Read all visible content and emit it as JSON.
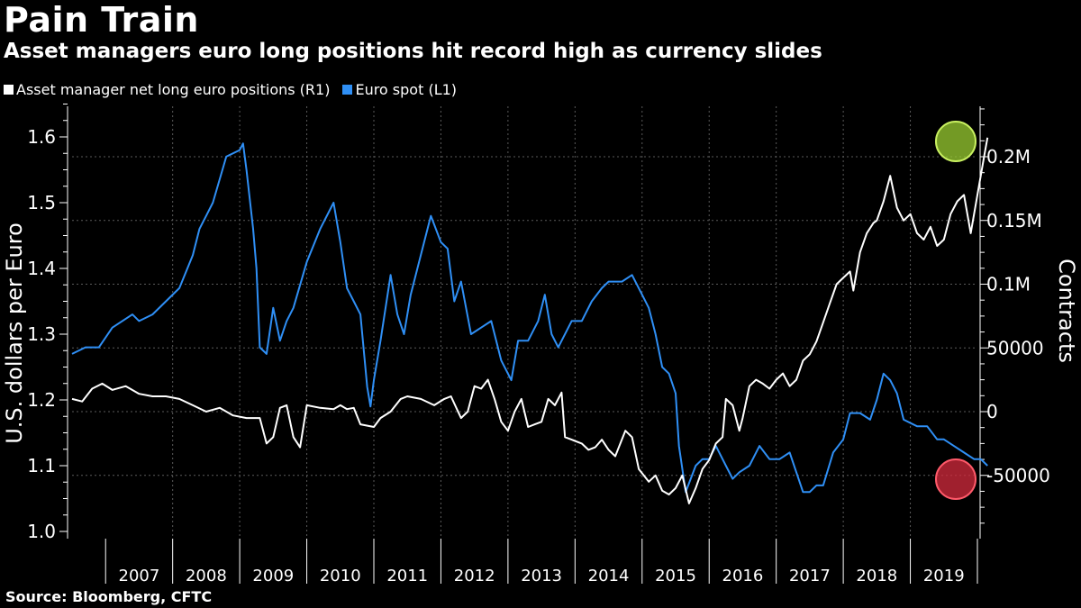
{
  "header": {
    "title": "Pain Train",
    "subtitle": "Asset managers euro long positions hit record high as currency slides"
  },
  "legend": [
    {
      "label": "Asset manager net long euro positions (R1)",
      "color": "#ffffff"
    },
    {
      "label": "Euro spot (L1)",
      "color": "#2f8ff5"
    }
  ],
  "footer": {
    "source": "Source: Bloomberg, CFTC"
  },
  "colors": {
    "background": "#000000",
    "euro": "#2f8ff5",
    "positions": "#ffffff",
    "grid": "#5a5a5a",
    "highlight_high": "#9acd32",
    "highlight_low": "#d62b3e"
  },
  "chart_data": {
    "type": "line",
    "title": "Pain Train",
    "subtitle": "Asset managers euro long positions hit record high as currency slides",
    "x_labels": [
      "2007",
      "2008",
      "2009",
      "2010",
      "2011",
      "2012",
      "2013",
      "2014",
      "2015",
      "2016",
      "2017",
      "2018",
      "2019"
    ],
    "xlim": [
      2006.0,
      2019.5
    ],
    "left_axis": {
      "label": "U.S. dollars per Euro",
      "ticks": [
        "1.0",
        "1.1",
        "1.2",
        "1.3",
        "1.4",
        "1.5",
        "1.6"
      ],
      "ylim": [
        1.0,
        1.65
      ]
    },
    "right_axis": {
      "label": "Contracts",
      "ticks": [
        "-50000",
        "0",
        "50000",
        "0.1M",
        "0.15M",
        "0.2M"
      ],
      "tick_values": [
        -50000,
        0,
        50000,
        100000,
        150000,
        200000
      ],
      "ylim": [
        -100000,
        240000
      ]
    },
    "series": [
      {
        "name": "Euro spot (L1)",
        "axis": "left",
        "points": [
          [
            2006.0,
            1.27
          ],
          [
            2006.2,
            1.28
          ],
          [
            2006.4,
            1.28
          ],
          [
            2006.6,
            1.31
          ],
          [
            2006.9,
            1.33
          ],
          [
            2007.0,
            1.32
          ],
          [
            2007.2,
            1.33
          ],
          [
            2007.4,
            1.35
          ],
          [
            2007.6,
            1.37
          ],
          [
            2007.8,
            1.42
          ],
          [
            2007.9,
            1.46
          ],
          [
            2008.0,
            1.48
          ],
          [
            2008.1,
            1.5
          ],
          [
            2008.3,
            1.57
          ],
          [
            2008.5,
            1.58
          ],
          [
            2008.55,
            1.59
          ],
          [
            2008.6,
            1.55
          ],
          [
            2008.7,
            1.46
          ],
          [
            2008.75,
            1.4
          ],
          [
            2008.8,
            1.28
          ],
          [
            2008.9,
            1.27
          ],
          [
            2009.0,
            1.34
          ],
          [
            2009.1,
            1.29
          ],
          [
            2009.2,
            1.32
          ],
          [
            2009.3,
            1.34
          ],
          [
            2009.5,
            1.41
          ],
          [
            2009.7,
            1.46
          ],
          [
            2009.9,
            1.5
          ],
          [
            2010.0,
            1.44
          ],
          [
            2010.1,
            1.37
          ],
          [
            2010.2,
            1.35
          ],
          [
            2010.3,
            1.33
          ],
          [
            2010.4,
            1.22
          ],
          [
            2010.45,
            1.19
          ],
          [
            2010.5,
            1.23
          ],
          [
            2010.6,
            1.29
          ],
          [
            2010.75,
            1.39
          ],
          [
            2010.85,
            1.33
          ],
          [
            2010.95,
            1.3
          ],
          [
            2011.05,
            1.36
          ],
          [
            2011.2,
            1.42
          ],
          [
            2011.35,
            1.48
          ],
          [
            2011.5,
            1.44
          ],
          [
            2011.6,
            1.43
          ],
          [
            2011.7,
            1.35
          ],
          [
            2011.8,
            1.38
          ],
          [
            2011.95,
            1.3
          ],
          [
            2012.1,
            1.31
          ],
          [
            2012.25,
            1.32
          ],
          [
            2012.4,
            1.26
          ],
          [
            2012.55,
            1.23
          ],
          [
            2012.65,
            1.29
          ],
          [
            2012.8,
            1.29
          ],
          [
            2012.95,
            1.32
          ],
          [
            2013.05,
            1.36
          ],
          [
            2013.15,
            1.3
          ],
          [
            2013.25,
            1.28
          ],
          [
            2013.45,
            1.32
          ],
          [
            2013.6,
            1.32
          ],
          [
            2013.75,
            1.35
          ],
          [
            2013.9,
            1.37
          ],
          [
            2014.0,
            1.38
          ],
          [
            2014.2,
            1.38
          ],
          [
            2014.35,
            1.39
          ],
          [
            2014.5,
            1.36
          ],
          [
            2014.6,
            1.34
          ],
          [
            2014.7,
            1.3
          ],
          [
            2014.8,
            1.25
          ],
          [
            2014.9,
            1.24
          ],
          [
            2015.0,
            1.21
          ],
          [
            2015.05,
            1.13
          ],
          [
            2015.15,
            1.06
          ],
          [
            2015.3,
            1.1
          ],
          [
            2015.4,
            1.11
          ],
          [
            2015.5,
            1.11
          ],
          [
            2015.6,
            1.13
          ],
          [
            2015.75,
            1.1
          ],
          [
            2015.85,
            1.08
          ],
          [
            2015.95,
            1.09
          ],
          [
            2016.1,
            1.1
          ],
          [
            2016.25,
            1.13
          ],
          [
            2016.4,
            1.11
          ],
          [
            2016.55,
            1.11
          ],
          [
            2016.7,
            1.12
          ],
          [
            2016.8,
            1.09
          ],
          [
            2016.9,
            1.06
          ],
          [
            2017.0,
            1.06
          ],
          [
            2017.1,
            1.07
          ],
          [
            2017.2,
            1.07
          ],
          [
            2017.35,
            1.12
          ],
          [
            2017.5,
            1.14
          ],
          [
            2017.6,
            1.18
          ],
          [
            2017.75,
            1.18
          ],
          [
            2017.9,
            1.17
          ],
          [
            2018.0,
            1.2
          ],
          [
            2018.1,
            1.24
          ],
          [
            2018.2,
            1.23
          ],
          [
            2018.3,
            1.21
          ],
          [
            2018.4,
            1.17
          ],
          [
            2018.6,
            1.16
          ],
          [
            2018.75,
            1.16
          ],
          [
            2018.9,
            1.14
          ],
          [
            2019.0,
            1.14
          ],
          [
            2019.15,
            1.13
          ],
          [
            2019.3,
            1.12
          ],
          [
            2019.45,
            1.11
          ],
          [
            2019.55,
            1.11
          ],
          [
            2019.65,
            1.1
          ]
        ]
      },
      {
        "name": "Asset manager net long euro positions (R1)",
        "axis": "right",
        "points": [
          [
            2006.0,
            10000
          ],
          [
            2006.15,
            8000
          ],
          [
            2006.3,
            18000
          ],
          [
            2006.45,
            22000
          ],
          [
            2006.6,
            17000
          ],
          [
            2006.8,
            20000
          ],
          [
            2007.0,
            14000
          ],
          [
            2007.2,
            12000
          ],
          [
            2007.4,
            12000
          ],
          [
            2007.6,
            10000
          ],
          [
            2007.8,
            5000
          ],
          [
            2008.0,
            0
          ],
          [
            2008.2,
            3000
          ],
          [
            2008.4,
            -3000
          ],
          [
            2008.6,
            -5000
          ],
          [
            2008.8,
            -5000
          ],
          [
            2008.9,
            -25000
          ],
          [
            2009.0,
            -20000
          ],
          [
            2009.1,
            3000
          ],
          [
            2009.2,
            5000
          ],
          [
            2009.3,
            -20000
          ],
          [
            2009.4,
            -28000
          ],
          [
            2009.5,
            5000
          ],
          [
            2009.7,
            3000
          ],
          [
            2009.9,
            2000
          ],
          [
            2010.0,
            5000
          ],
          [
            2010.1,
            2000
          ],
          [
            2010.2,
            3000
          ],
          [
            2010.3,
            -10000
          ],
          [
            2010.5,
            -12000
          ],
          [
            2010.6,
            -5000
          ],
          [
            2010.75,
            0
          ],
          [
            2010.9,
            10000
          ],
          [
            2011.0,
            12000
          ],
          [
            2011.2,
            10000
          ],
          [
            2011.4,
            5000
          ],
          [
            2011.55,
            10000
          ],
          [
            2011.65,
            12000
          ],
          [
            2011.8,
            -5000
          ],
          [
            2011.9,
            0
          ],
          [
            2012.0,
            20000
          ],
          [
            2012.1,
            18000
          ],
          [
            2012.2,
            25000
          ],
          [
            2012.3,
            10000
          ],
          [
            2012.4,
            -8000
          ],
          [
            2012.5,
            -15000
          ],
          [
            2012.6,
            0
          ],
          [
            2012.7,
            10000
          ],
          [
            2012.8,
            -12000
          ],
          [
            2012.9,
            -10000
          ],
          [
            2013.0,
            -8000
          ],
          [
            2013.1,
            10000
          ],
          [
            2013.2,
            5000
          ],
          [
            2013.3,
            15000
          ],
          [
            2013.35,
            -20000
          ],
          [
            2013.45,
            -22000
          ],
          [
            2013.6,
            -25000
          ],
          [
            2013.7,
            -30000
          ],
          [
            2013.8,
            -28000
          ],
          [
            2013.9,
            -22000
          ],
          [
            2014.0,
            -30000
          ],
          [
            2014.1,
            -35000
          ],
          [
            2014.25,
            -15000
          ],
          [
            2014.35,
            -20000
          ],
          [
            2014.45,
            -45000
          ],
          [
            2014.6,
            -55000
          ],
          [
            2014.7,
            -50000
          ],
          [
            2014.8,
            -62000
          ],
          [
            2014.9,
            -65000
          ],
          [
            2015.0,
            -60000
          ],
          [
            2015.1,
            -50000
          ],
          [
            2015.2,
            -72000
          ],
          [
            2015.3,
            -60000
          ],
          [
            2015.4,
            -45000
          ],
          [
            2015.5,
            -38000
          ],
          [
            2015.6,
            -25000
          ],
          [
            2015.7,
            -20000
          ],
          [
            2015.75,
            10000
          ],
          [
            2015.85,
            5000
          ],
          [
            2015.95,
            -15000
          ],
          [
            2016.0,
            -5000
          ],
          [
            2016.1,
            20000
          ],
          [
            2016.2,
            25000
          ],
          [
            2016.3,
            22000
          ],
          [
            2016.4,
            18000
          ],
          [
            2016.5,
            25000
          ],
          [
            2016.6,
            30000
          ],
          [
            2016.7,
            20000
          ],
          [
            2016.8,
            25000
          ],
          [
            2016.9,
            40000
          ],
          [
            2017.0,
            45000
          ],
          [
            2017.1,
            55000
          ],
          [
            2017.2,
            70000
          ],
          [
            2017.3,
            85000
          ],
          [
            2017.4,
            100000
          ],
          [
            2017.5,
            105000
          ],
          [
            2017.6,
            110000
          ],
          [
            2017.65,
            95000
          ],
          [
            2017.75,
            125000
          ],
          [
            2017.85,
            140000
          ],
          [
            2017.95,
            148000
          ],
          [
            2018.0,
            150000
          ],
          [
            2018.1,
            165000
          ],
          [
            2018.2,
            185000
          ],
          [
            2018.3,
            160000
          ],
          [
            2018.4,
            150000
          ],
          [
            2018.5,
            155000
          ],
          [
            2018.6,
            140000
          ],
          [
            2018.7,
            135000
          ],
          [
            2018.8,
            145000
          ],
          [
            2018.9,
            130000
          ],
          [
            2019.0,
            135000
          ],
          [
            2019.1,
            155000
          ],
          [
            2019.2,
            165000
          ],
          [
            2019.3,
            170000
          ],
          [
            2019.4,
            140000
          ],
          [
            2019.5,
            170000
          ],
          [
            2019.6,
            200000
          ],
          [
            2019.65,
            215000
          ]
        ]
      }
    ]
  }
}
